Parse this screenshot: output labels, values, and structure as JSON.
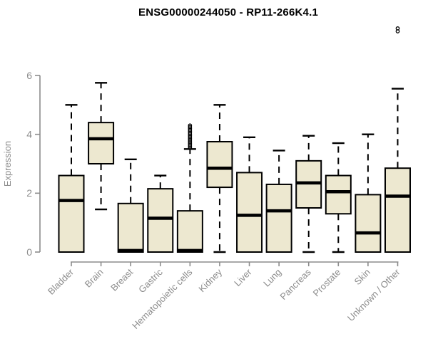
{
  "title": "ENSG00000244050 - RP11-266K4.1",
  "chart_data": {
    "type": "boxplot",
    "title": "ENSG00000244050 - RP11-266K4.1",
    "xlabel": "",
    "ylabel": "Expression",
    "ylim": [
      0,
      6
    ],
    "yticks": [
      0,
      2,
      4,
      6
    ],
    "grid": false,
    "legend": "none",
    "categories": [
      "Bladder",
      "Brain",
      "Breast",
      "Gastric",
      "Hematopoietic cells",
      "Kidney",
      "Liver",
      "Lung",
      "Pancreas",
      "Prostate",
      "Skin",
      "Unknown / Other"
    ],
    "series": [
      {
        "category": "Bladder",
        "whisker_low": 0,
        "q1": 0,
        "median": 1.75,
        "q3": 2.6,
        "whisker_high": 5.0,
        "outliers": []
      },
      {
        "category": "Brain",
        "whisker_low": 1.45,
        "q1": 3.0,
        "median": 3.85,
        "q3": 4.4,
        "whisker_high": 5.75,
        "outliers": []
      },
      {
        "category": "Breast",
        "whisker_low": 0,
        "q1": 0,
        "median": 0.05,
        "q3": 1.65,
        "whisker_high": 3.15,
        "outliers": []
      },
      {
        "category": "Gastric",
        "whisker_low": 0,
        "q1": 0,
        "median": 1.15,
        "q3": 2.15,
        "whisker_high": 2.6,
        "outliers": []
      },
      {
        "category": "Hematopoietic cells",
        "whisker_low": 0,
        "q1": 0,
        "median": 0.05,
        "q3": 1.4,
        "whisker_high": 3.5,
        "outliers": [
          3.55,
          3.6,
          3.65,
          3.7,
          3.75,
          3.8,
          3.85,
          3.9,
          3.95,
          4.0,
          4.05,
          4.1,
          4.15,
          4.2,
          4.25,
          4.3
        ]
      },
      {
        "category": "Kidney",
        "whisker_low": 0,
        "q1": 2.2,
        "median": 2.85,
        "q3": 3.75,
        "whisker_high": 5.0,
        "outliers": []
      },
      {
        "category": "Liver",
        "whisker_low": 0,
        "q1": 0,
        "median": 1.25,
        "q3": 2.7,
        "whisker_high": 3.9,
        "outliers": []
      },
      {
        "category": "Lung",
        "whisker_low": 0,
        "q1": 0,
        "median": 1.4,
        "q3": 2.3,
        "whisker_high": 3.45,
        "outliers": []
      },
      {
        "category": "Pancreas",
        "whisker_low": 0,
        "q1": 1.5,
        "median": 2.35,
        "q3": 3.1,
        "whisker_high": 3.95,
        "outliers": []
      },
      {
        "category": "Prostate",
        "whisker_low": 0,
        "q1": 1.3,
        "median": 2.05,
        "q3": 2.6,
        "whisker_high": 3.7,
        "outliers": []
      },
      {
        "category": "Skin",
        "whisker_low": 0,
        "q1": 0,
        "median": 0.65,
        "q3": 1.95,
        "whisker_high": 4.0,
        "outliers": []
      },
      {
        "category": "Unknown / Other",
        "whisker_low": 0,
        "q1": 0,
        "median": 1.9,
        "q3": 2.85,
        "whisker_high": 5.55,
        "outliers": [
          7.5,
          7.6
        ]
      }
    ],
    "colors": {
      "box_fill": "#EDE8D0",
      "box_border": "#000000",
      "median": "#000000",
      "whisker": "#000000",
      "outlier": "#000000",
      "axis": "#8C8C8C",
      "axis_text": "#8C8C8C",
      "title": "#000000",
      "background": "#FFFFFF"
    }
  }
}
